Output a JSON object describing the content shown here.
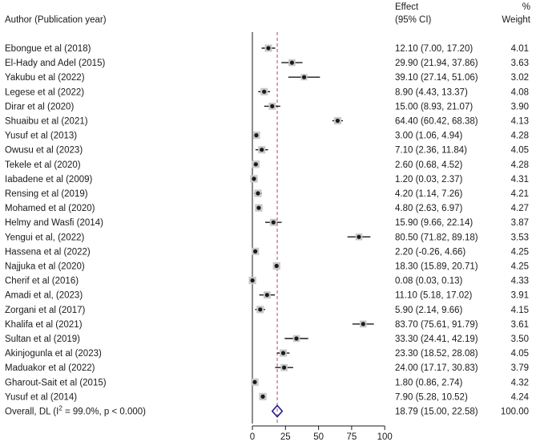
{
  "chart_data": {
    "type": "forest",
    "header": {
      "study": "Author (Publication year)",
      "effect_line1": "Effect",
      "effect_line2": "(95% CI)",
      "weight_line1": "%",
      "weight_line2": "Weight"
    },
    "studies": [
      {
        "label": "Ebongue et al (2018)",
        "est": 12.1,
        "lo": 7.0,
        "hi": 17.2,
        "ci_text": "12.10 (7.00, 17.20)",
        "weight": "4.01"
      },
      {
        "label": "El-Hady  and Adel (2015)",
        "est": 29.9,
        "lo": 21.94,
        "hi": 37.86,
        "ci_text": "29.90 (21.94, 37.86)",
        "weight": "3.63"
      },
      {
        "label": "Yakubu et al (2022)",
        "est": 39.1,
        "lo": 27.14,
        "hi": 51.06,
        "ci_text": "39.10 (27.14, 51.06)",
        "weight": "3.02"
      },
      {
        "label": "Legese et al (2022)",
        "est": 8.9,
        "lo": 4.43,
        "hi": 13.37,
        "ci_text": "8.90 (4.43, 13.37)",
        "weight": "4.08"
      },
      {
        "label": "Dirar et al (2020)",
        "est": 15.0,
        "lo": 8.93,
        "hi": 21.07,
        "ci_text": "15.00 (8.93, 21.07)",
        "weight": "3.90"
      },
      {
        "label": "Shuaibu et al (2021)",
        "est": 64.4,
        "lo": 60.42,
        "hi": 68.38,
        "ci_text": "64.40 (60.42, 68.38)",
        "weight": "4.13"
      },
      {
        "label": "Yusuf et al (2013)",
        "est": 3.0,
        "lo": 1.06,
        "hi": 4.94,
        "ci_text": "3.00 (1.06, 4.94)",
        "weight": "4.28"
      },
      {
        "label": "Owusu et al (2023)",
        "est": 7.1,
        "lo": 2.36,
        "hi": 11.84,
        "ci_text": "7.10 (2.36, 11.84)",
        "weight": "4.05"
      },
      {
        "label": "Tekele et al (2020)",
        "est": 2.6,
        "lo": 0.68,
        "hi": 4.52,
        "ci_text": "2.60 (0.68, 4.52)",
        "weight": "4.28"
      },
      {
        "label": "Iabadene et al (2009)",
        "est": 1.2,
        "lo": 0.03,
        "hi": 2.37,
        "ci_text": "1.20 (0.03, 2.37)",
        "weight": "4.31"
      },
      {
        "label": "Rensing et al (2019)",
        "est": 4.2,
        "lo": 1.14,
        "hi": 7.26,
        "ci_text": "4.20 (1.14, 7.26)",
        "weight": "4.21"
      },
      {
        "label": "Mohamed et al (2020)",
        "est": 4.8,
        "lo": 2.63,
        "hi": 6.97,
        "ci_text": "4.80 (2.63, 6.97)",
        "weight": "4.27"
      },
      {
        "label": "Helmy and Wasfi (2014)",
        "est": 15.9,
        "lo": 9.66,
        "hi": 22.14,
        "ci_text": "15.90 (9.66, 22.14)",
        "weight": "3.87"
      },
      {
        "label": "Yengui et al, (2022)",
        "est": 80.5,
        "lo": 71.82,
        "hi": 89.18,
        "ci_text": "80.50 (71.82, 89.18)",
        "weight": "3.53"
      },
      {
        "label": "Hassena et al (2022)",
        "est": 2.2,
        "lo": -0.26,
        "hi": 4.66,
        "ci_text": "2.20 (-0.26, 4.66)",
        "weight": "4.25"
      },
      {
        "label": "Najjuka et al (2020)",
        "est": 18.3,
        "lo": 15.89,
        "hi": 20.71,
        "ci_text": "18.30 (15.89, 20.71)",
        "weight": "4.25"
      },
      {
        "label": "Cherif et al (2016)",
        "est": 0.08,
        "lo": 0.03,
        "hi": 0.13,
        "ci_text": "0.08 (0.03, 0.13)",
        "weight": "4.33"
      },
      {
        "label": "Amadi et al, (2023)",
        "est": 11.1,
        "lo": 5.18,
        "hi": 17.02,
        "ci_text": "11.10 (5.18, 17.02)",
        "weight": "3.91"
      },
      {
        "label": "Zorgani et al (2017)",
        "est": 5.9,
        "lo": 2.14,
        "hi": 9.66,
        "ci_text": "5.90 (2.14, 9.66)",
        "weight": "4.15"
      },
      {
        "label": "Khalifa et al (2021)",
        "est": 83.7,
        "lo": 75.61,
        "hi": 91.79,
        "ci_text": "83.70 (75.61, 91.79)",
        "weight": "3.61"
      },
      {
        "label": "Sultan et al (2019)",
        "est": 33.3,
        "lo": 24.41,
        "hi": 42.19,
        "ci_text": "33.30 (24.41, 42.19)",
        "weight": "3.50"
      },
      {
        "label": "Akinjogunla et al (2023)",
        "est": 23.3,
        "lo": 18.52,
        "hi": 28.08,
        "ci_text": "23.30 (18.52, 28.08)",
        "weight": "4.05"
      },
      {
        "label": "Maduakor et al (2022)",
        "est": 24.0,
        "lo": 17.17,
        "hi": 30.83,
        "ci_text": "24.00 (17.17, 30.83)",
        "weight": "3.79"
      },
      {
        "label": "Gharout-Sait et al (2015)",
        "est": 1.8,
        "lo": 0.86,
        "hi": 2.74,
        "ci_text": "1.80 (0.86, 2.74)",
        "weight": "4.32"
      },
      {
        "label": "Yusuf et al (2014)",
        "est": 7.9,
        "lo": 5.28,
        "hi": 10.52,
        "ci_text": "7.90 (5.28, 10.52)",
        "weight": "4.24"
      }
    ],
    "overall": {
      "label_prefix": "Overall, DL (I",
      "label_sup": "2",
      "label_suffix": " = 99.0%, p < 0.000)",
      "est": 18.79,
      "lo": 15.0,
      "hi": 22.58,
      "ci_text": "18.79 (15.00, 22.58)",
      "weight": "100.00"
    },
    "null_line": 0,
    "x_ticks": [
      0,
      25,
      50,
      75,
      100
    ],
    "xlim": [
      0,
      100
    ],
    "colors": {
      "marker": "#1a1a1a",
      "ci_line": "#1a1a1a",
      "reference": "#b44a5a",
      "diamond": "#1f1f8f",
      "axis": "#1a1a1a"
    }
  }
}
